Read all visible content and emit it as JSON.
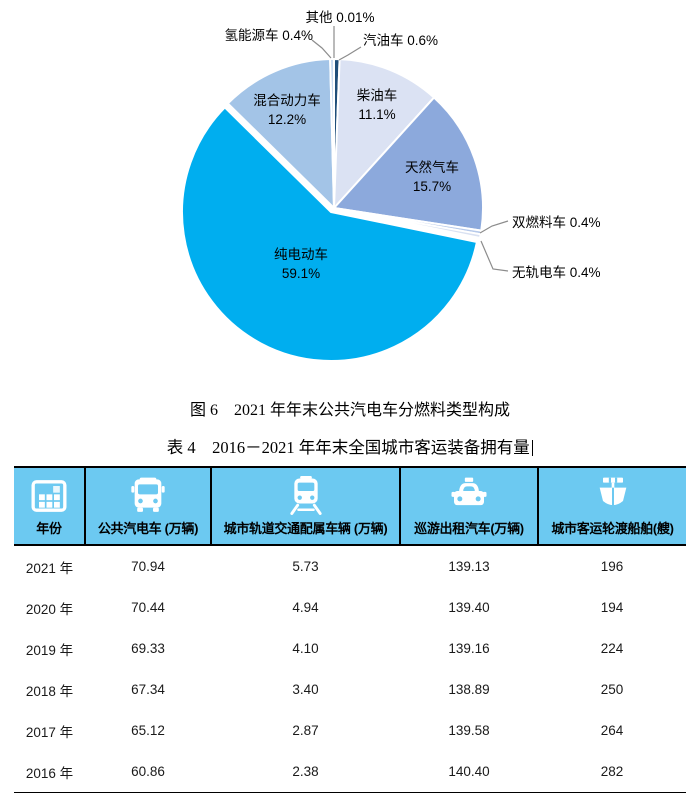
{
  "figure": {
    "caption": "图 6　2021 年年末公共汽电车分燃料类型构成"
  },
  "chart_data": {
    "type": "pie",
    "title": "2021 年年末公共汽电车分燃料类型构成",
    "unit": "percent",
    "start_angle": "12-oclock",
    "direction": "clockwise",
    "slices": [
      {
        "label": "汽油车",
        "value": 0.6,
        "pct": "0.6%",
        "color": "#1F4E79"
      },
      {
        "label": "柴油车",
        "value": 11.1,
        "pct": "11.1%",
        "color": "#DBE2F3"
      },
      {
        "label": "天然气车",
        "value": 15.7,
        "pct": "15.7%",
        "color": "#8CA9DC"
      },
      {
        "label": "双燃料车",
        "value": 0.4,
        "pct": "0.4%",
        "color": "#B6C9EA"
      },
      {
        "label": "无轨电车",
        "value": 0.4,
        "pct": "0.4%",
        "color": "#D9E1F2"
      },
      {
        "label": "纯电动车",
        "value": 59.1,
        "pct": "59.1%",
        "color": "#00AEEF"
      },
      {
        "label": "混合动力车",
        "value": 12.2,
        "pct": "12.2%",
        "color": "#A3C4E7"
      },
      {
        "label": "氢能源车",
        "value": 0.4,
        "pct": "0.4%",
        "color": "#BFD6EF"
      },
      {
        "label": "其他",
        "value": 0.01,
        "pct": "0.01%",
        "color": "#E9EEF8"
      }
    ],
    "leader_line_color": "#8c8c8c"
  },
  "table": {
    "title": "表 4　2016－2021 年年末全国城市客运装备拥有量",
    "header_bg": "#6CC9F1",
    "columns": [
      {
        "label": "年份",
        "icon": "calendar-icon"
      },
      {
        "label": "公共汽电车 (万辆)",
        "icon": "bus-icon"
      },
      {
        "label": "城市轨道交通配属车辆 (万辆)",
        "icon": "train-icon"
      },
      {
        "label": "巡游出租汽车(万辆)",
        "icon": "taxi-icon"
      },
      {
        "label": "城市客运轮渡船舶(艘)",
        "icon": "ship-icon"
      }
    ],
    "rows": [
      {
        "year": "2021 年",
        "values": [
          "70.94",
          "5.73",
          "139.13",
          "196"
        ]
      },
      {
        "year": "2020 年",
        "values": [
          "70.44",
          "4.94",
          "139.40",
          "194"
        ]
      },
      {
        "year": "2019 年",
        "values": [
          "69.33",
          "4.10",
          "139.16",
          "224"
        ]
      },
      {
        "year": "2018 年",
        "values": [
          "67.34",
          "3.40",
          "138.89",
          "250"
        ]
      },
      {
        "year": "2017 年",
        "values": [
          "65.12",
          "2.87",
          "139.58",
          "264"
        ]
      },
      {
        "year": "2016 年",
        "values": [
          "60.86",
          "2.38",
          "140.40",
          "282"
        ]
      }
    ]
  }
}
